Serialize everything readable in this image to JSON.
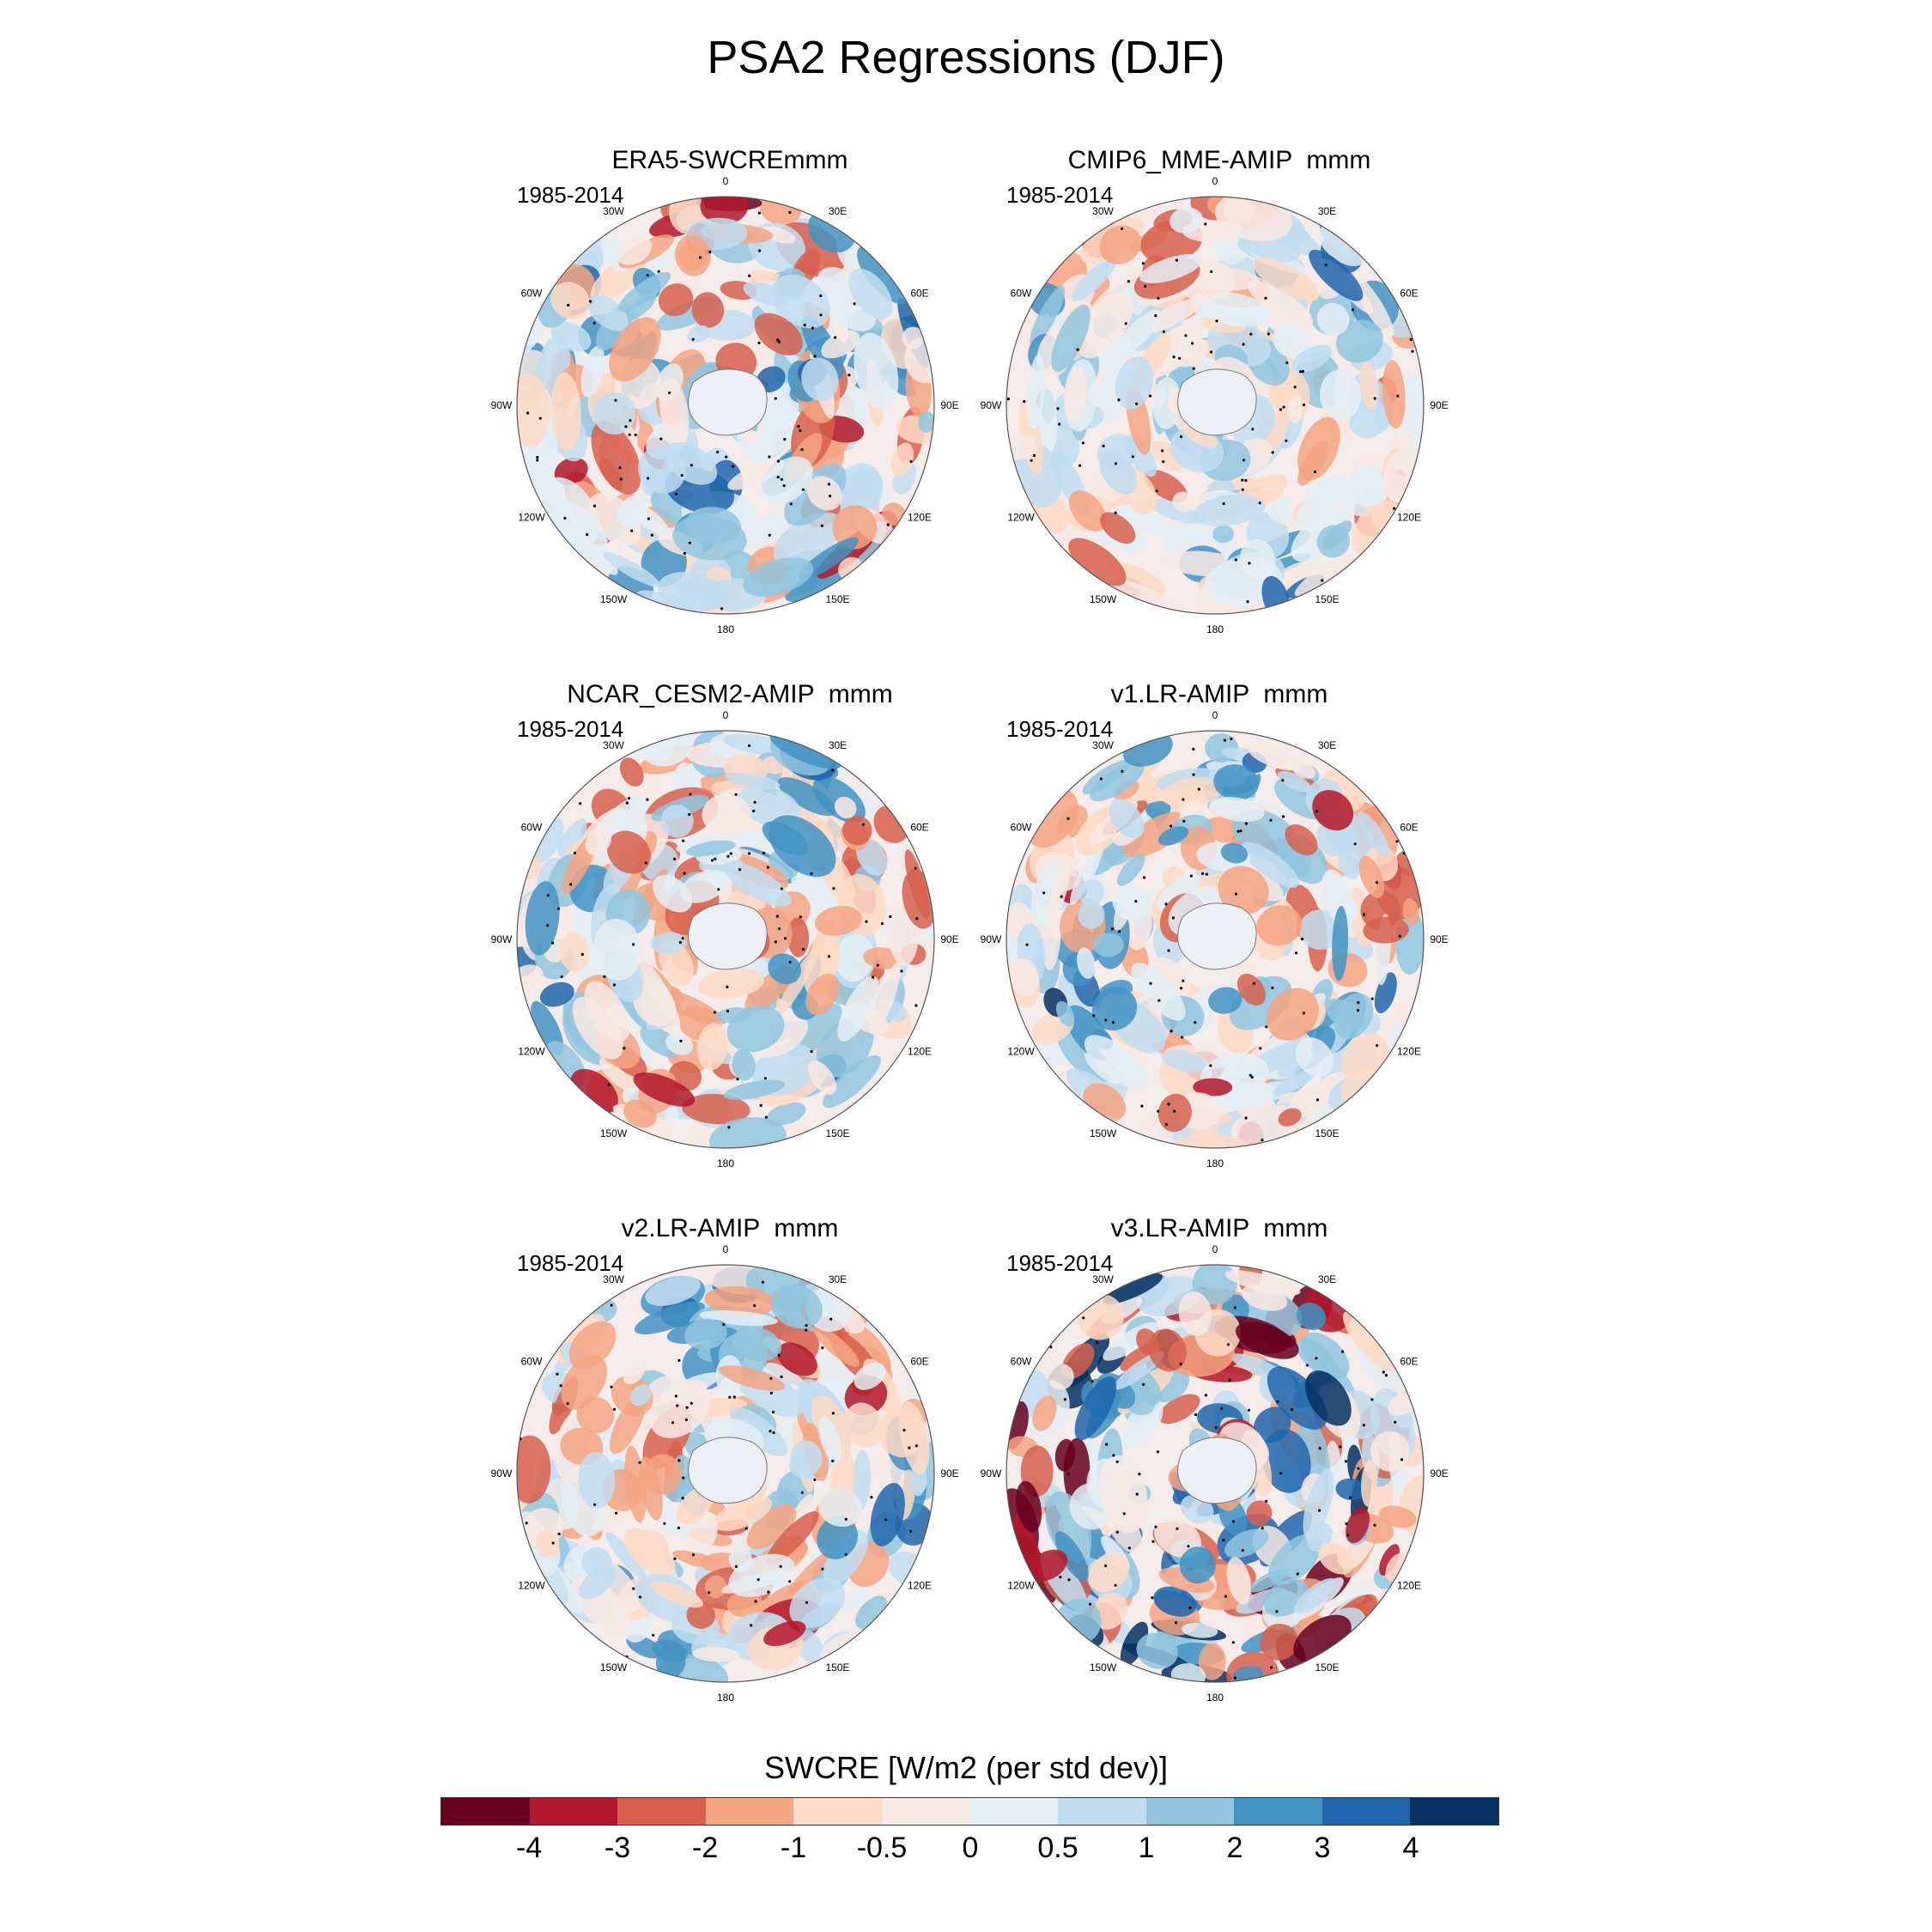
{
  "title": "PSA2 Regressions (DJF)",
  "panels": [
    {
      "title": "ERA5-SWCREmmm",
      "period": "1985-2014"
    },
    {
      "title": "CMIP6_MME-AMIP  mmm",
      "period": "1985-2014"
    },
    {
      "title": "NCAR_CESM2-AMIP  mmm",
      "period": "1985-2014"
    },
    {
      "title": "v1.LR-AMIP  mmm",
      "period": "1985-2014"
    },
    {
      "title": "v2.LR-AMIP  mmm",
      "period": "1985-2014"
    },
    {
      "title": "v3.LR-AMIP  mmm",
      "period": "1985-2014"
    }
  ],
  "longitude_labels": [
    "0",
    "30E",
    "60E",
    "90E",
    "120E",
    "150E",
    "180",
    "150W",
    "120W",
    "90W",
    "60W",
    "30W"
  ],
  "colorbar": {
    "title": "SWCRE [W/m2 (per std dev)]",
    "tick_labels": [
      "-4",
      "-3",
      "-2",
      "-1",
      "-0.5",
      "0",
      "0.5",
      "1",
      "2",
      "3",
      "4"
    ],
    "colors": [
      "#67001f",
      "#b2182b",
      "#d6604d",
      "#f4a582",
      "#fddbc7",
      "#f7e9e4",
      "#e4eef5",
      "#c2ddf0",
      "#92c5de",
      "#4393c3",
      "#2166ac",
      "#053061"
    ]
  }
}
